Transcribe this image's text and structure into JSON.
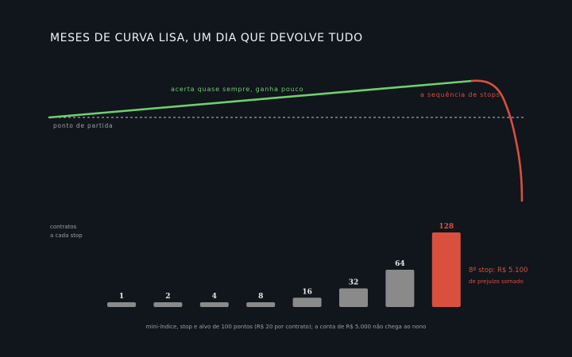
{
  "title": "MESES DE CURVA LISA, UM DIA QUE DEVOLVE TUDO",
  "colors": {
    "background": "#11151c",
    "gain": "#6fcf6f",
    "loss": "#d9503f",
    "bar": "#8a8a8a",
    "bar_highlight": "#d9503f",
    "muted": "#9aa0a6",
    "baseline": "#bfc3c7"
  },
  "equity_panel": {
    "gain_label": "acerta quase sempre, ganha pouco",
    "loss_label": "a sequência de stops",
    "baseline_label": "ponto de partida"
  },
  "bars_panel": {
    "axis_label_line1": "contratos",
    "axis_label_line2": "a cada stop",
    "highlight_line1": "8º stop: R$ 5.100",
    "highlight_line2": "de prejuízo somado",
    "footnote": "mini-índice, stop e alvo de 100 pontos (R$ 20 por contrato); a conta de R$ 5.000 não chega ao nono"
  },
  "chart_data": {
    "type": "bar",
    "categories": [
      "1",
      "2",
      "4",
      "8",
      "16",
      "32",
      "64",
      "128"
    ],
    "values": [
      1,
      2,
      4,
      8,
      16,
      32,
      64,
      128
    ],
    "highlight_index": 7,
    "ylabel": "contratos a cada stop"
  }
}
